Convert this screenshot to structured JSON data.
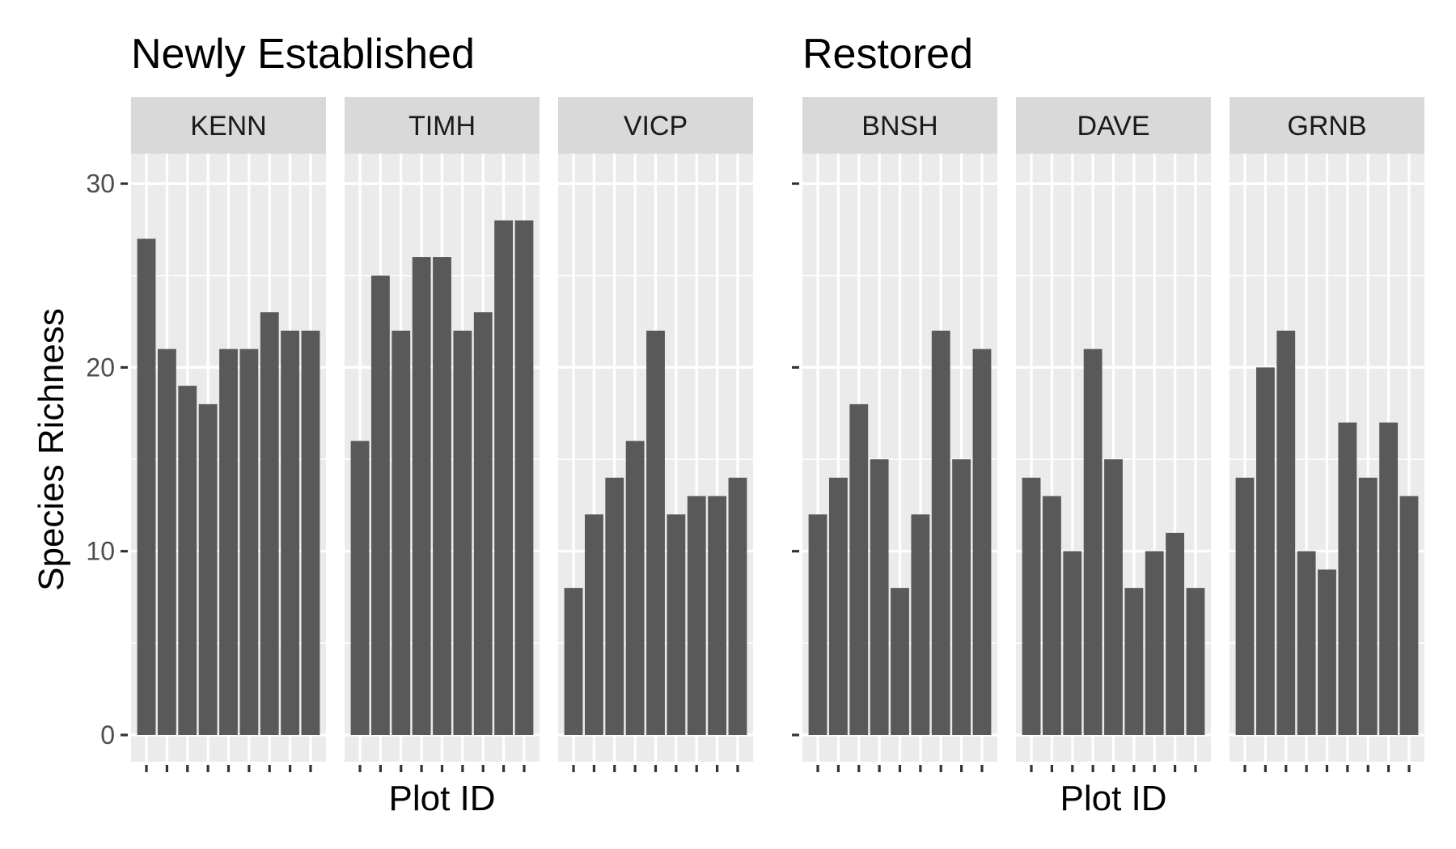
{
  "chart_data": [
    {
      "type": "bar",
      "title": "Newly Established",
      "xlabel": "Plot ID",
      "ylabel": "Species Richness",
      "ylim": [
        0,
        30
      ],
      "yticks": [
        "0",
        "10",
        "20",
        "30"
      ],
      "grid": true,
      "facets": [
        {
          "label": "KENN",
          "values": [
            27,
            21,
            19,
            18,
            21,
            21,
            23,
            22,
            22
          ]
        },
        {
          "label": "TIMH",
          "values": [
            16,
            25,
            22,
            26,
            26,
            22,
            23,
            28,
            28
          ]
        },
        {
          "label": "VICP",
          "values": [
            8,
            12,
            14,
            16,
            22,
            12,
            13,
            13,
            14
          ]
        }
      ]
    },
    {
      "type": "bar",
      "title": "Restored",
      "xlabel": "Plot ID",
      "ylabel": "",
      "ylim": [
        0,
        30
      ],
      "yticks": [],
      "grid": true,
      "facets": [
        {
          "label": "BNSH",
          "values": [
            12,
            14,
            18,
            15,
            8,
            12,
            22,
            15,
            21
          ]
        },
        {
          "label": "DAVE",
          "values": [
            14,
            13,
            10,
            21,
            15,
            8,
            10,
            11,
            8
          ]
        },
        {
          "label": "GRNB",
          "values": [
            14,
            20,
            22,
            10,
            9,
            17,
            14,
            17,
            13
          ]
        }
      ]
    }
  ],
  "colors": {
    "bar": "#595959",
    "panel": "#ebebeb",
    "strip": "#d9d9d9",
    "grid": "#ffffff",
    "tick": "#333333"
  }
}
